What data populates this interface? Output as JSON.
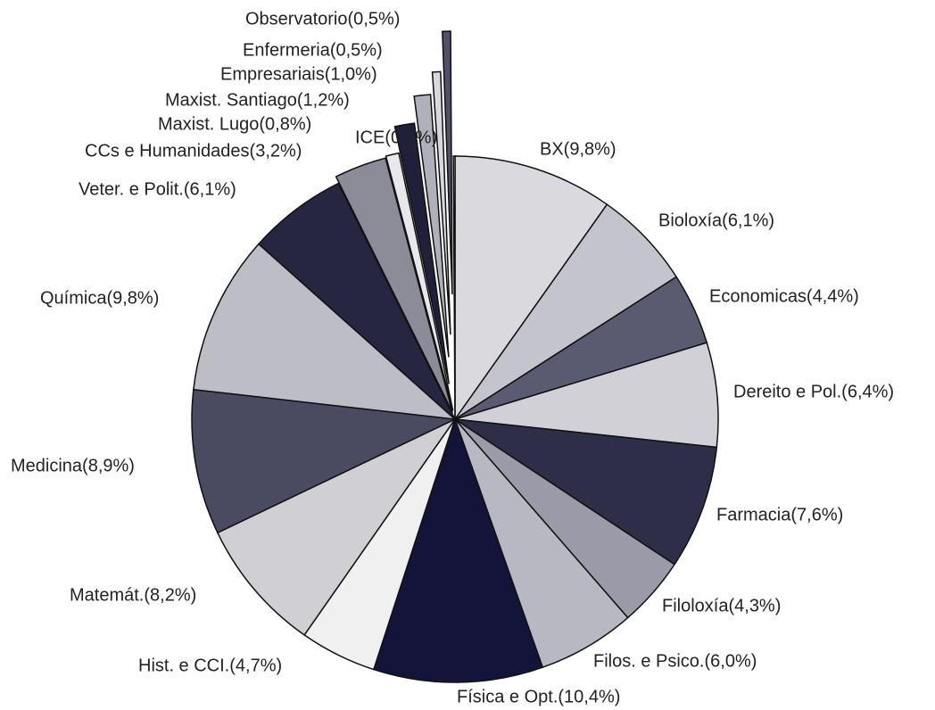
{
  "chart_data": {
    "type": "pie",
    "categories": [
      "BX(9,8%)",
      "Bioloxía(6,1%)",
      "Economicas(4,4%)",
      "Dereito e Pol.(6,4%)",
      "Farmacia(7,6%)",
      "Filoloxía(4,3%)",
      "Filos. e Psico.(6,0%)",
      "Física e Opt.(10,4%)",
      "Hist. e CCI.(4,7%)",
      "Matemát.(8,2%)",
      "Medicina(8,9%)",
      "Química(9,8%)",
      "Veter. e Polit.(6,1%)",
      "CCs e Humanidades(3,2%)",
      "Maxist. Lugo(0,8%)",
      "Maxist. Santiago(1,2%)",
      "Empresariais(1,0%)",
      "Enfermeria(0,5%)",
      "Observatorio(0,5%)",
      "ICE(0,1%)"
    ],
    "values": [
      9.8,
      6.1,
      4.4,
      6.4,
      7.6,
      4.3,
      6.0,
      10.4,
      4.7,
      8.2,
      8.9,
      9.8,
      6.1,
      3.2,
      0.8,
      1.2,
      1.0,
      0.5,
      0.5,
      0.1
    ],
    "colors": [
      "#d9d9de",
      "#c4c4cc",
      "#5a5a70",
      "#d0d0d6",
      "#2e2e48",
      "#9a9aa8",
      "#b8b8c2",
      "#14143a",
      "#f0f0f0",
      "#cfcfd4",
      "#4a4a60",
      "#bdbdc6",
      "#262640",
      "#8c8c98",
      "#e8e8ec",
      "#20203a",
      "#b0b0ba",
      "#d8d8de",
      "#505068",
      "#ffffff"
    ]
  }
}
